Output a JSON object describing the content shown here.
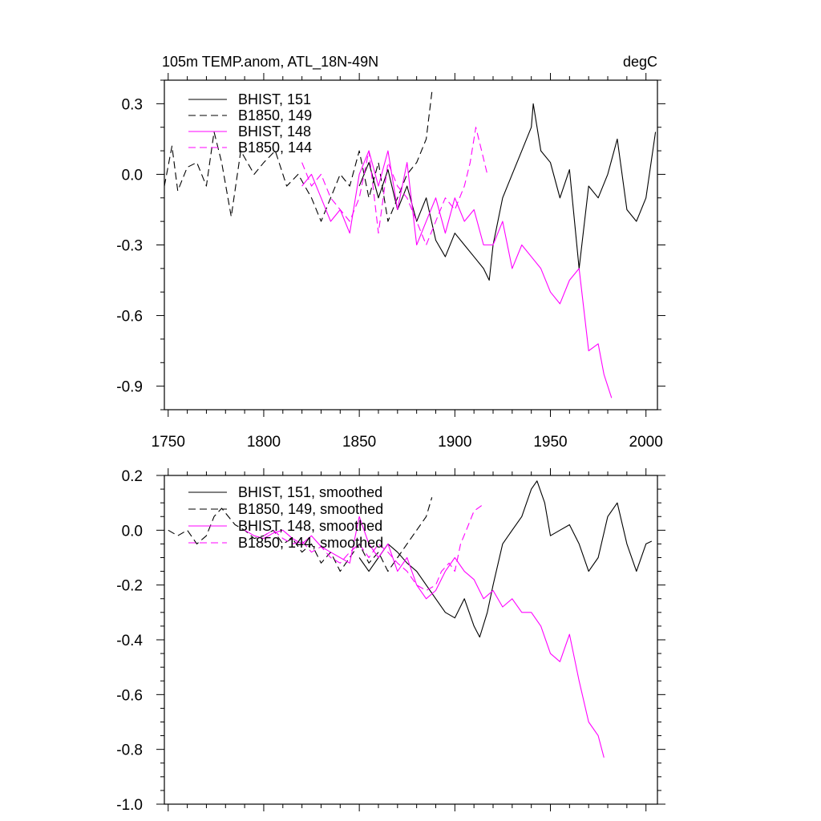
{
  "chart_data": [
    {
      "type": "line",
      "title": "105m TEMP.anom, ATL_18N-49N",
      "units": "degC",
      "xlim": [
        1748,
        2006
      ],
      "ylim": [
        -1.0,
        0.4
      ],
      "x_ticks": [
        "1750",
        "1800",
        "1850",
        "1900",
        "1950",
        "2000"
      ],
      "y_ticks": [
        "0.3",
        "0.0",
        "-0.3",
        "-0.6",
        "-0.9"
      ],
      "y_tick_values": [
        0.3,
        0.0,
        -0.3,
        -0.6,
        -0.9
      ],
      "legend_position": "top-left",
      "series": [
        {
          "name": "BHIST, 151",
          "color": "#000000",
          "dash": "solid",
          "x": [
            1850,
            1855,
            1860,
            1865,
            1870,
            1875,
            1880,
            1885,
            1890,
            1895,
            1900,
            1905,
            1910,
            1915,
            1918,
            1920,
            1925,
            1930,
            1935,
            1940,
            1941,
            1945,
            1950,
            1955,
            1960,
            1965,
            1970,
            1975,
            1980,
            1985,
            1990,
            1995,
            2000,
            2005
          ],
          "y": [
            -0.05,
            0.05,
            -0.1,
            0.02,
            -0.15,
            -0.05,
            -0.2,
            -0.1,
            -0.28,
            -0.35,
            -0.25,
            -0.3,
            -0.35,
            -0.4,
            -0.45,
            -0.3,
            -0.1,
            0.0,
            0.1,
            0.2,
            0.3,
            0.1,
            0.05,
            -0.1,
            0.02,
            -0.4,
            -0.05,
            -0.1,
            0.0,
            0.15,
            -0.15,
            -0.2,
            -0.1,
            0.18
          ]
        },
        {
          "name": "B1850, 149",
          "color": "#000000",
          "dash": "dashed",
          "x": [
            1748,
            1752,
            1755,
            1760,
            1765,
            1770,
            1774,
            1778,
            1783,
            1788,
            1795,
            1800,
            1806,
            1812,
            1818,
            1825,
            1830,
            1835,
            1840,
            1845,
            1850,
            1855,
            1860,
            1865,
            1870,
            1875,
            1880,
            1885,
            1888
          ],
          "y": [
            -0.05,
            0.12,
            -0.07,
            0.03,
            0.05,
            -0.05,
            0.18,
            0.05,
            -0.18,
            0.1,
            0.0,
            0.05,
            0.1,
            -0.05,
            0.0,
            -0.1,
            -0.2,
            -0.1,
            0.0,
            -0.05,
            0.1,
            -0.1,
            0.05,
            -0.2,
            -0.1,
            0.0,
            0.05,
            0.15,
            0.35
          ]
        },
        {
          "name": "BHIST, 148",
          "color": "#ff00ff",
          "dash": "solid",
          "x": [
            1820,
            1825,
            1830,
            1835,
            1840,
            1845,
            1850,
            1855,
            1860,
            1865,
            1870,
            1875,
            1880,
            1885,
            1890,
            1895,
            1900,
            1905,
            1910,
            1915,
            1920,
            1925,
            1930,
            1935,
            1940,
            1945,
            1950,
            1955,
            1960,
            1965,
            1970,
            1975,
            1978,
            1982
          ],
          "y": [
            -0.05,
            0.0,
            -0.1,
            -0.2,
            -0.15,
            -0.25,
            0.0,
            0.1,
            -0.05,
            0.1,
            -0.15,
            0.05,
            -0.3,
            -0.2,
            -0.1,
            -0.25,
            -0.1,
            -0.2,
            -0.15,
            -0.3,
            -0.3,
            -0.2,
            -0.4,
            -0.3,
            -0.35,
            -0.4,
            -0.5,
            -0.55,
            -0.45,
            -0.4,
            -0.75,
            -0.72,
            -0.85,
            -0.95
          ]
        },
        {
          "name": "B1850, 144",
          "color": "#ff00ff",
          "dash": "dashed",
          "x": [
            1820,
            1825,
            1830,
            1835,
            1840,
            1845,
            1850,
            1855,
            1860,
            1865,
            1870,
            1875,
            1880,
            1885,
            1890,
            1895,
            1900,
            1905,
            1908,
            1911,
            1914,
            1917
          ],
          "y": [
            0.05,
            -0.05,
            0.0,
            -0.1,
            -0.15,
            -0.2,
            -0.1,
            0.1,
            -0.25,
            0.05,
            -0.05,
            -0.1,
            -0.2,
            -0.3,
            -0.2,
            -0.1,
            -0.15,
            -0.05,
            0.05,
            0.2,
            0.1,
            0.0
          ]
        }
      ]
    },
    {
      "type": "line",
      "title": "",
      "xlim": [
        1748,
        2006
      ],
      "ylim": [
        -1.0,
        0.2
      ],
      "x_ticks": [],
      "y_ticks": [
        "0.2",
        "0.0",
        "-0.2",
        "-0.4",
        "-0.6",
        "-0.8",
        "-1.0"
      ],
      "y_tick_values": [
        0.2,
        0.0,
        -0.2,
        -0.4,
        -0.6,
        -0.8,
        -1.0
      ],
      "legend_position": "top-left",
      "series": [
        {
          "name": "BHIST, 151, smoothed",
          "color": "#000000",
          "dash": "solid",
          "x": [
            1850,
            1855,
            1860,
            1865,
            1870,
            1875,
            1880,
            1885,
            1890,
            1895,
            1900,
            1905,
            1910,
            1913,
            1917,
            1920,
            1925,
            1930,
            1935,
            1940,
            1943,
            1947,
            1950,
            1955,
            1960,
            1965,
            1970,
            1975,
            1980,
            1985,
            1990,
            1995,
            2000,
            2003
          ],
          "y": [
            -0.1,
            -0.15,
            -0.1,
            -0.05,
            -0.08,
            -0.12,
            -0.15,
            -0.2,
            -0.25,
            -0.3,
            -0.32,
            -0.25,
            -0.35,
            -0.39,
            -0.3,
            -0.2,
            -0.05,
            0.0,
            0.05,
            0.15,
            0.18,
            0.1,
            -0.02,
            0.0,
            0.02,
            -0.05,
            -0.15,
            -0.1,
            0.05,
            0.1,
            -0.05,
            -0.15,
            -0.05,
            -0.04
          ]
        },
        {
          "name": "B1850, 149, smoothed",
          "color": "#000000",
          "dash": "dashed",
          "x": [
            1750,
            1755,
            1760,
            1765,
            1770,
            1774,
            1778,
            1785,
            1790,
            1795,
            1800,
            1805,
            1810,
            1815,
            1820,
            1825,
            1830,
            1835,
            1840,
            1845,
            1850,
            1855,
            1860,
            1865,
            1870,
            1875,
            1880,
            1885,
            1888
          ],
          "y": [
            0.0,
            -0.02,
            0.0,
            -0.05,
            -0.02,
            0.05,
            0.08,
            0.02,
            0.0,
            -0.03,
            -0.02,
            0.0,
            -0.05,
            -0.03,
            -0.08,
            -0.05,
            -0.12,
            -0.08,
            -0.15,
            -0.1,
            -0.05,
            -0.12,
            -0.08,
            -0.15,
            -0.1,
            -0.05,
            0.0,
            0.05,
            0.12
          ]
        },
        {
          "name": "BHIST, 148, smoothed",
          "color": "#ff00ff",
          "dash": "solid",
          "x": [
            1790,
            1795,
            1800,
            1805,
            1810,
            1815,
            1820,
            1825,
            1830,
            1835,
            1840,
            1845,
            1850,
            1855,
            1860,
            1865,
            1870,
            1875,
            1880,
            1885,
            1890,
            1895,
            1900,
            1905,
            1910,
            1915,
            1920,
            1925,
            1930,
            1935,
            1940,
            1945,
            1950,
            1955,
            1960,
            1965,
            1970,
            1975,
            1978
          ],
          "y": [
            0.0,
            -0.02,
            -0.03,
            -0.01,
            0.0,
            -0.03,
            -0.05,
            -0.02,
            -0.06,
            -0.08,
            -0.1,
            -0.12,
            0.05,
            -0.05,
            -0.1,
            -0.05,
            -0.15,
            -0.1,
            -0.2,
            -0.25,
            -0.22,
            -0.15,
            -0.1,
            -0.15,
            -0.18,
            -0.25,
            -0.22,
            -0.28,
            -0.25,
            -0.3,
            -0.3,
            -0.35,
            -0.45,
            -0.48,
            -0.38,
            -0.55,
            -0.7,
            -0.75,
            -0.83
          ]
        },
        {
          "name": "B1850, 144, smoothed",
          "color": "#ff00ff",
          "dash": "dashed",
          "x": [
            1800,
            1805,
            1810,
            1815,
            1820,
            1825,
            1830,
            1835,
            1840,
            1845,
            1850,
            1855,
            1860,
            1865,
            1870,
            1875,
            1880,
            1885,
            1890,
            1893,
            1897,
            1900,
            1903,
            1906,
            1910,
            1914
          ],
          "y": [
            -0.02,
            0.0,
            -0.03,
            -0.05,
            -0.04,
            -0.08,
            -0.06,
            -0.1,
            -0.12,
            -0.08,
            -0.05,
            -0.1,
            -0.05,
            -0.08,
            -0.12,
            -0.15,
            -0.2,
            -0.22,
            -0.2,
            -0.15,
            -0.12,
            -0.15,
            -0.05,
            0.0,
            0.07,
            0.09
          ]
        }
      ]
    }
  ]
}
